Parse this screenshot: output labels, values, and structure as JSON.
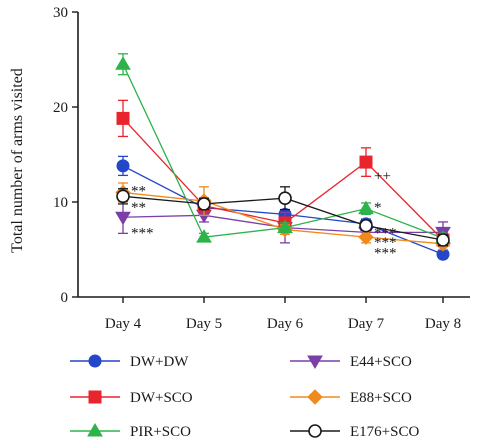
{
  "chart_data": {
    "type": "line",
    "title": "",
    "xlabel": "",
    "ylabel": "Total number of arms visited",
    "ylim": [
      0,
      30
    ],
    "yticks": [
      0,
      10,
      20,
      30
    ],
    "categories": [
      "Day 4",
      "Day 5",
      "Day 6",
      "Day 7",
      "Day 8"
    ],
    "grid": false,
    "legend_position": "bottom",
    "series": [
      {
        "name": "DW+DW",
        "values": [
          13.8,
          9.4,
          8.7,
          7.7,
          4.5
        ],
        "errors": [
          1.0,
          0.6,
          0.5,
          0.5,
          0.4
        ],
        "color": "#2447c9",
        "marker": "circle",
        "filled": true
      },
      {
        "name": "E44+SCO",
        "values": [
          8.4,
          8.6,
          7.3,
          6.8,
          6.8
        ],
        "errors": [
          1.7,
          0.7,
          1.6,
          0.6,
          1.1
        ],
        "color": "#7b3fa8",
        "marker": "triangle-down",
        "filled": true
      },
      {
        "name": "DW+SCO",
        "values": [
          18.8,
          9.6,
          7.8,
          14.2,
          6.0
        ],
        "errors": [
          1.9,
          0.8,
          0.6,
          1.5,
          0.7
        ],
        "color": "#e8242c",
        "marker": "square",
        "filled": true
      },
      {
        "name": "E88+SCO",
        "values": [
          11.0,
          10.1,
          7.1,
          6.3,
          5.6
        ],
        "errors": [
          1.0,
          1.5,
          0.5,
          0.6,
          0.6
        ],
        "color": "#f08a1c",
        "marker": "diamond",
        "filled": true
      },
      {
        "name": "PIR+SCO",
        "values": [
          24.5,
          6.3,
          7.3,
          9.3,
          6.2
        ],
        "errors": [
          1.1,
          0.4,
          0.5,
          0.6,
          0.5
        ],
        "color": "#2db34a",
        "marker": "triangle-up",
        "filled": true
      },
      {
        "name": "E176+SCO",
        "values": [
          10.6,
          9.8,
          10.4,
          7.5,
          6.0
        ],
        "errors": [
          0.8,
          0.6,
          1.2,
          0.5,
          0.6
        ],
        "color": "#1a1a1a",
        "marker": "circle",
        "filled": false
      }
    ],
    "annotations": [
      {
        "category": "Day 4",
        "y": 11.2,
        "text": "**"
      },
      {
        "category": "Day 4",
        "y": 9.5,
        "text": "**"
      },
      {
        "category": "Day 4",
        "y": 6.8,
        "text": "***"
      },
      {
        "category": "Day 7",
        "y": 12.8,
        "text": "++"
      },
      {
        "category": "Day 7",
        "y": 9.5,
        "text": "*"
      },
      {
        "category": "Day 7",
        "y": 6.8,
        "text": "***"
      },
      {
        "category": "Day 7",
        "y": 5.8,
        "text": "***"
      },
      {
        "category": "Day 7",
        "y": 4.7,
        "text": "***"
      }
    ]
  }
}
